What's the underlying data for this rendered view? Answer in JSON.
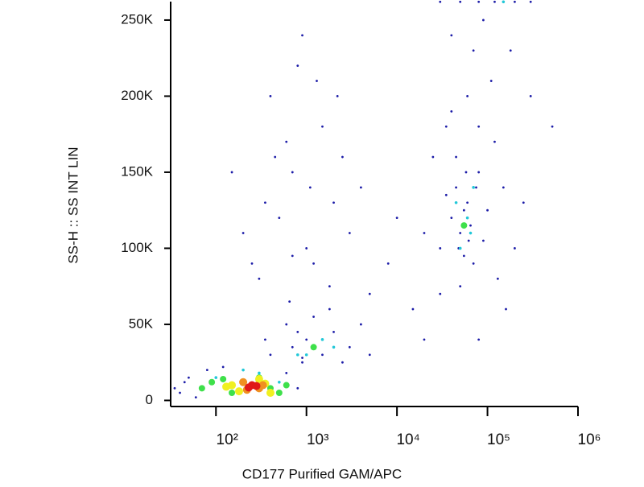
{
  "chart_data": {
    "type": "scatter",
    "x_label": "CD177 Purified GAM/APC",
    "y_label": "SS-H :: SS INT LIN",
    "xscale": "log",
    "xlim": [
      31.6,
      1000000
    ],
    "ylim": [
      -4000,
      262144
    ],
    "xticks": [
      {
        "value": 100,
        "label": "10²"
      },
      {
        "value": 1000,
        "label": "10³"
      },
      {
        "value": 10000,
        "label": "10⁴"
      },
      {
        "value": 100000,
        "label": "10⁵"
      },
      {
        "value": 1000000,
        "label": "10⁶"
      }
    ],
    "yticks": [
      0,
      {
        "value": 50000,
        "label": "50K"
      },
      {
        "value": 100000,
        "label": "100K"
      },
      {
        "value": 150000,
        "label": "150K"
      },
      {
        "value": 200000,
        "label": "200K"
      },
      {
        "value": 250000,
        "label": "250K"
      }
    ],
    "series": [
      {
        "color": "#1c1ca8",
        "x": [
          40,
          50,
          60,
          80,
          45,
          120,
          600,
          800,
          900,
          35,
          400,
          700,
          1000,
          1500,
          2000,
          3000,
          1200,
          800,
          2500,
          5000,
          600,
          1800,
          4000,
          900,
          350,
          300,
          500,
          700,
          1000,
          1500,
          2000,
          400,
          800,
          1200,
          2500,
          600,
          900,
          3000,
          350,
          1800,
          700,
          1100,
          450,
          5000,
          8000,
          10000,
          15000,
          4000,
          200,
          150,
          2200,
          650,
          1300,
          250,
          20000,
          30000,
          40000,
          50000,
          60000,
          70000,
          80000,
          45000,
          55000,
          65000,
          35000,
          90000,
          100000,
          120000,
          150000,
          200000,
          25000,
          40000,
          60000,
          80000,
          50000,
          70000,
          110000,
          30000,
          45000,
          55000,
          62000,
          75000,
          48000,
          58000,
          130000,
          300000,
          250000,
          20000,
          160000,
          90000,
          40000,
          80000,
          180000,
          520000,
          35000,
          30000,
          50000,
          80000,
          120000,
          200000,
          300000
        ],
        "values": [
          5000,
          15000,
          2000,
          20000,
          12000,
          22000,
          18000,
          8000,
          25000,
          8000,
          30000,
          35000,
          40000,
          30000,
          45000,
          35000,
          55000,
          45000,
          25000,
          30000,
          50000,
          60000,
          50000,
          28000,
          40000,
          80000,
          120000,
          150000,
          100000,
          180000,
          130000,
          200000,
          220000,
          90000,
          160000,
          170000,
          240000,
          110000,
          130000,
          75000,
          95000,
          140000,
          160000,
          70000,
          90000,
          120000,
          60000,
          140000,
          110000,
          150000,
          200000,
          65000,
          210000,
          90000,
          40000,
          100000,
          120000,
          110000,
          130000,
          90000,
          150000,
          140000,
          95000,
          115000,
          135000,
          105000,
          125000,
          170000,
          140000,
          100000,
          160000,
          190000,
          200000,
          180000,
          75000,
          230000,
          210000,
          70000,
          160000,
          125000,
          105000,
          140000,
          100000,
          150000,
          80000,
          200000,
          130000,
          110000,
          60000,
          250000,
          240000,
          40000,
          230000,
          180000,
          180000,
          262000,
          262000,
          262000,
          262000,
          262000,
          262000
        ]
      },
      {
        "color": "#22c8d8",
        "x": [
          100,
          300,
          500,
          800,
          1500,
          2000,
          60000,
          50000,
          70000,
          45000,
          65000,
          150000,
          1000,
          200
        ],
        "values": [
          15000,
          18000,
          12000,
          30000,
          40000,
          35000,
          120000,
          100000,
          140000,
          130000,
          110000,
          262000,
          30000,
          20000
        ]
      },
      {
        "color": "#3ee04a",
        "x": [
          70,
          90,
          150,
          400,
          500,
          120,
          600,
          300,
          1200,
          55000
        ],
        "values": [
          8000,
          12000,
          5000,
          8000,
          5000,
          14000,
          10000,
          15000,
          35000,
          115000
        ]
      },
      {
        "color": "#f0f020",
        "x": [
          150,
          180,
          350,
          400,
          130,
          300
        ],
        "values": [
          10000,
          6000,
          11000,
          5000,
          9000,
          14000
        ]
      },
      {
        "color": "#f09020",
        "x": [
          200,
          300,
          220,
          330
        ],
        "values": [
          12000,
          8000,
          7000,
          10000
        ]
      },
      {
        "color": "#e01818",
        "x": [
          250,
          230,
          280
        ],
        "values": [
          10000,
          8500,
          9500
        ]
      }
    ]
  }
}
